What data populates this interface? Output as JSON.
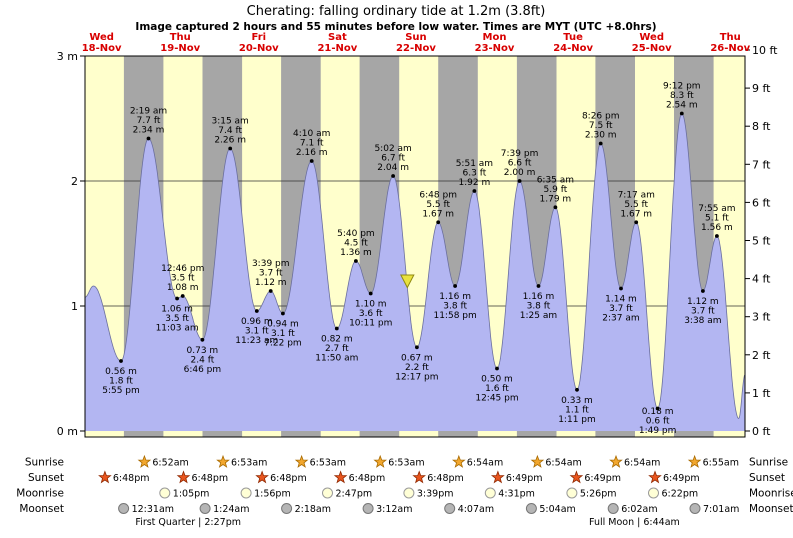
{
  "title": "Cherating: falling ordinary tide at 1.2m (3.8ft)",
  "subtitle": "Image captured 2 hours and 55 minutes before low water. Times are MYT (UTC +8.0hrs)",
  "day_headers": [
    {
      "weekday": "Wed",
      "date": "18-Nov"
    },
    {
      "weekday": "Thu",
      "date": "19-Nov"
    },
    {
      "weekday": "Fri",
      "date": "20-Nov"
    },
    {
      "weekday": "Sat",
      "date": "21-Nov"
    },
    {
      "weekday": "Sun",
      "date": "22-Nov"
    },
    {
      "weekday": "Mon",
      "date": "23-Nov"
    },
    {
      "weekday": "Tue",
      "date": "24-Nov"
    },
    {
      "weekday": "Wed",
      "date": "25-Nov"
    },
    {
      "weekday": "Thu",
      "date": "26-Nov"
    }
  ],
  "axes": {
    "left": [
      {
        "value": 3,
        "label": "3 m"
      },
      {
        "value": 2,
        "label": "2"
      },
      {
        "value": 1,
        "label": "1"
      },
      {
        "value": 0,
        "label": "0 m"
      }
    ],
    "right": [
      {
        "value": 10,
        "label": "10 ft"
      },
      {
        "value": 9,
        "label": "9 ft"
      },
      {
        "value": 8,
        "label": "8 ft"
      },
      {
        "value": 7,
        "label": "7 ft"
      },
      {
        "value": 6,
        "label": "6 ft"
      },
      {
        "value": 5,
        "label": "5 ft"
      },
      {
        "value": 4,
        "label": "4 ft"
      },
      {
        "value": 3,
        "label": "3 ft"
      },
      {
        "value": 2,
        "label": "2 ft"
      },
      {
        "value": 1,
        "label": "1 ft"
      },
      {
        "value": 0,
        "label": "0 ft"
      }
    ]
  },
  "chart_data": {
    "type": "area",
    "title": "Cherating tide heights 18-Nov to 26-Nov",
    "x_start": {
      "date": 18,
      "time": "6:55 am"
    },
    "x_end": {
      "date": 26,
      "time": "4:30 pm"
    },
    "y_left": {
      "unit": "m",
      "min": 0,
      "max": 3
    },
    "y_right": {
      "unit": "ft",
      "min": 0,
      "max": 10
    },
    "tide_events": [
      {
        "date": 18,
        "time": "5:55 pm",
        "height_m": 0.56,
        "height_ft": 1.8,
        "type": "low"
      },
      {
        "date": 19,
        "time": "2:19 am",
        "height_m": 2.34,
        "height_ft": 7.7,
        "type": "high"
      },
      {
        "date": 19,
        "time": "11:03 am",
        "height_m": 1.06,
        "height_ft": 3.5,
        "type": "low"
      },
      {
        "date": 19,
        "time": "12:46 pm",
        "height_m": 1.08,
        "height_ft": 3.5,
        "type": "high"
      },
      {
        "date": 19,
        "time": "6:46 pm",
        "height_m": 0.73,
        "height_ft": 2.4,
        "type": "low"
      },
      {
        "date": 20,
        "time": "3:15 am",
        "height_m": 2.26,
        "height_ft": 7.4,
        "type": "high"
      },
      {
        "date": 20,
        "time": "11:23 am",
        "height_m": 0.96,
        "height_ft": 3.1,
        "type": "low"
      },
      {
        "date": 20,
        "time": "3:39 pm",
        "height_m": 1.12,
        "height_ft": 3.7,
        "type": "high"
      },
      {
        "date": 20,
        "time": "7:22 pm",
        "height_m": 0.94,
        "height_ft": 3.1,
        "type": "low"
      },
      {
        "date": 21,
        "time": "4:10 am",
        "height_m": 2.16,
        "height_ft": 7.1,
        "type": "high"
      },
      {
        "date": 21,
        "time": "11:50 am",
        "height_m": 0.82,
        "height_ft": 2.7,
        "type": "low"
      },
      {
        "date": 21,
        "time": "5:40 pm",
        "height_m": 1.36,
        "height_ft": 4.5,
        "type": "high"
      },
      {
        "date": 21,
        "time": "10:11 pm",
        "height_m": 1.1,
        "height_ft": 3.6,
        "type": "low"
      },
      {
        "date": 22,
        "time": "5:02 am",
        "height_m": 2.04,
        "height_ft": 6.7,
        "type": "high"
      },
      {
        "date": 22,
        "time": "12:17 pm",
        "height_m": 0.67,
        "height_ft": 2.2,
        "type": "low"
      },
      {
        "date": 22,
        "time": "6:48 pm",
        "height_m": 1.67,
        "height_ft": 5.5,
        "type": "high"
      },
      {
        "date": 22,
        "time": "11:58 pm",
        "height_m": 1.16,
        "height_ft": 3.8,
        "type": "low"
      },
      {
        "date": 23,
        "time": "5:51 am",
        "height_m": 1.92,
        "height_ft": 6.3,
        "type": "high"
      },
      {
        "date": 23,
        "time": "12:45 pm",
        "height_m": 0.5,
        "height_ft": 1.6,
        "type": "low"
      },
      {
        "date": 23,
        "time": "7:39 pm",
        "height_m": 2.0,
        "height_ft": 6.6,
        "type": "high"
      },
      {
        "date": 24,
        "time": "1:25 am",
        "height_m": 1.16,
        "height_ft": 3.8,
        "type": "low"
      },
      {
        "date": 24,
        "time": "6:35 am",
        "height_m": 1.79,
        "height_ft": 5.9,
        "type": "high"
      },
      {
        "date": 24,
        "time": "1:11 pm",
        "height_m": 0.33,
        "height_ft": 1.1,
        "type": "low"
      },
      {
        "date": 24,
        "time": "8:26 pm",
        "height_m": 2.3,
        "height_ft": 7.5,
        "type": "high"
      },
      {
        "date": 25,
        "time": "2:37 am",
        "height_m": 1.14,
        "height_ft": 3.7,
        "type": "low"
      },
      {
        "date": 25,
        "time": "7:17 am",
        "height_m": 1.67,
        "height_ft": 5.5,
        "type": "high"
      },
      {
        "date": 25,
        "time": "1:49 pm",
        "height_m": 0.18,
        "height_ft": 0.6,
        "type": "low"
      },
      {
        "date": 25,
        "time": "9:12 pm",
        "height_m": 2.54,
        "height_ft": 8.3,
        "type": "high"
      },
      {
        "date": 26,
        "time": "3:38 am",
        "height_m": 1.12,
        "height_ft": 3.7,
        "type": "low"
      },
      {
        "date": 26,
        "time": "7:55 am",
        "height_m": 1.56,
        "height_ft": 5.1,
        "type": "high"
      }
    ],
    "edge_points": [
      {
        "date": 18,
        "time": "6:55 am",
        "height_m": 1.07,
        "estimated": true
      },
      {
        "date": 18,
        "time": "9:30 am",
        "height_m": 1.16,
        "estimated": true
      },
      {
        "date": 26,
        "time": "2:35 pm",
        "height_m": 0.1,
        "estimated": true
      },
      {
        "date": 26,
        "time": "4:30 pm",
        "height_m": 0.45,
        "estimated": true
      }
    ],
    "marker": {
      "date": 22,
      "time": "9:22 am",
      "height_m": 1.2,
      "label": "current tide level (falling)"
    }
  },
  "almanac": {
    "rows": [
      {
        "id": "sunrise",
        "label": "Sunrise",
        "icon": "sunrise-icon",
        "entries": [
          {
            "date": 19,
            "time": "6:52am"
          },
          {
            "date": 20,
            "time": "6:53am"
          },
          {
            "date": 21,
            "time": "6:53am"
          },
          {
            "date": 22,
            "time": "6:53am"
          },
          {
            "date": 23,
            "time": "6:54am"
          },
          {
            "date": 24,
            "time": "6:54am"
          },
          {
            "date": 25,
            "time": "6:54am"
          },
          {
            "date": 26,
            "time": "6:55am"
          }
        ]
      },
      {
        "id": "sunset",
        "label": "Sunset",
        "icon": "sunset-icon",
        "entries": [
          {
            "date": 18,
            "time": "6:48pm"
          },
          {
            "date": 19,
            "time": "6:48pm"
          },
          {
            "date": 20,
            "time": "6:48pm"
          },
          {
            "date": 21,
            "time": "6:48pm"
          },
          {
            "date": 22,
            "time": "6:48pm"
          },
          {
            "date": 23,
            "time": "6:49pm"
          },
          {
            "date": 24,
            "time": "6:49pm"
          },
          {
            "date": 25,
            "time": "6:49pm"
          }
        ]
      },
      {
        "id": "moonrise",
        "label": "Moonrise",
        "icon": "moonrise-icon",
        "entries": [
          {
            "date": 19,
            "time": "1:05pm"
          },
          {
            "date": 20,
            "time": "1:56pm"
          },
          {
            "date": 21,
            "time": "2:47pm"
          },
          {
            "date": 22,
            "time": "3:39pm"
          },
          {
            "date": 23,
            "time": "4:31pm"
          },
          {
            "date": 24,
            "time": "5:26pm"
          },
          {
            "date": 25,
            "time": "6:22pm"
          }
        ]
      },
      {
        "id": "moonset",
        "label": "Moonset",
        "icon": "moonset-icon",
        "entries": [
          {
            "date": 19,
            "time": "12:31am"
          },
          {
            "date": 20,
            "time": "1:24am"
          },
          {
            "date": 21,
            "time": "2:18am"
          },
          {
            "date": 22,
            "time": "3:12am"
          },
          {
            "date": 23,
            "time": "4:07am"
          },
          {
            "date": 24,
            "time": "5:04am"
          },
          {
            "date": 25,
            "time": "6:02am"
          },
          {
            "date": 26,
            "time": "7:01am"
          }
        ]
      }
    ],
    "phases": [
      {
        "label": "First Quarter | 2:27pm",
        "date": 19,
        "time": "2:27pm"
      },
      {
        "label": "Full Moon | 6:44am",
        "date": 25,
        "time": "6:44am"
      }
    ]
  },
  "colors": {
    "day_bg": "#ffffcc",
    "night_bg": "#a6a6a6",
    "tide_fill": "#b3b6f2",
    "tide_stroke": "#6b6f9e",
    "day_label": "#d80000",
    "sunrise_icon": "#f2a72e",
    "sunrise_stroke": "#a86a00",
    "sunset_icon": "#e8551e",
    "sunset_stroke": "#902800",
    "moonrise_icon": "#ffffd6",
    "moonrise_stroke": "#9a9a9a",
    "moonset_icon": "#b5b5b5",
    "moonset_stroke": "#777777",
    "marker_fill": "#e9e23e",
    "marker_stroke": "#8f8a12"
  }
}
